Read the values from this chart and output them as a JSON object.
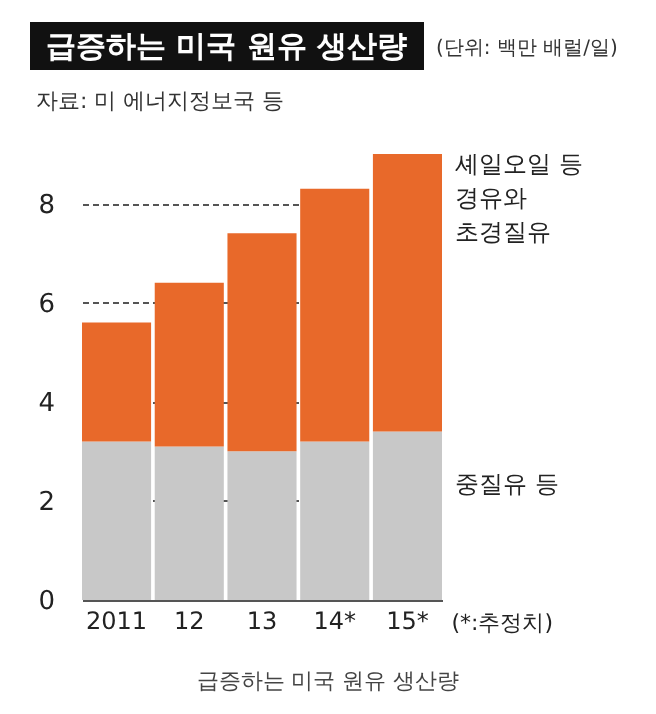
{
  "chart_data": {
    "type": "bar",
    "title": "급증하는 미국 원유 생산량",
    "subtitle": "(단위: 백만 배럴/일)",
    "annotations": [
      "자료: 미 에너지정보국 등",
      "(*:추정치)",
      "급증하는 미국 원유 생산량"
    ],
    "categories": [
      "2011",
      "12",
      "13",
      "14*",
      "15*"
    ],
    "stacked": true,
    "series": [
      {
        "name": "중질유 등",
        "color": "#c8c8c8",
        "values": [
          3.2,
          3.1,
          3.0,
          3.2,
          3.4
        ]
      },
      {
        "name": "셰일오일 등\n경유와\n초경질유",
        "color": "#e8692a",
        "values": [
          2.4,
          3.3,
          4.4,
          5.1,
          5.6
        ]
      }
    ],
    "ylim": [
      0,
      9
    ],
    "yticks": [
      0,
      2,
      4,
      6,
      8
    ],
    "grid": "y"
  }
}
